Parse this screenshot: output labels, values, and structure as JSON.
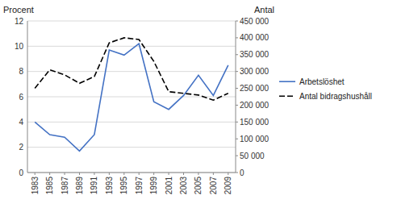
{
  "chart_data": {
    "type": "line",
    "y_label": "Procent",
    "y2_label": "Antal",
    "x": [
      1983,
      1985,
      1987,
      1989,
      1991,
      1993,
      1995,
      1997,
      1999,
      2001,
      2003,
      2005,
      2007,
      2009
    ],
    "series": [
      {
        "name": "Arbetslöshet",
        "color": "#4472C4",
        "line_style": "solid",
        "values": [
          4.0,
          3.0,
          2.8,
          1.7,
          3.0,
          9.7,
          9.3,
          10.2,
          5.6,
          5.0,
          6.1,
          7.7,
          6.1,
          8.5
        ]
      },
      {
        "name": "Antal bidragshushåll",
        "color": "#000000",
        "line_style": "dashed",
        "axis": "y2",
        "values": [
          250000,
          305000,
          290000,
          265000,
          285000,
          385000,
          400000,
          395000,
          330000,
          240000,
          235000,
          230000,
          215000,
          235000
        ]
      }
    ],
    "xlim": [
      1982,
      2010
    ],
    "xticks": [
      1983,
      1985,
      1987,
      1989,
      1991,
      1993,
      1995,
      1997,
      1999,
      2001,
      2003,
      2005,
      2007,
      2009
    ],
    "ylim": [
      0,
      12
    ],
    "yticks": [
      0,
      2,
      4,
      6,
      8,
      10,
      12
    ],
    "y2lim": [
      0,
      450000
    ],
    "y2ticks": [
      0,
      {
        "value": 50000,
        "label": "50 000"
      },
      {
        "value": 100000,
        "label": "100 000"
      },
      {
        "value": 150000,
        "label": "150 000"
      },
      {
        "value": 200000,
        "label": "200 000"
      },
      {
        "value": 250000,
        "label": "250 000"
      },
      {
        "value": 300000,
        "label": "300 000"
      },
      {
        "value": 350000,
        "label": "350 000"
      },
      {
        "value": 400000,
        "label": "400 000"
      },
      {
        "value": 450000,
        "label": "450 000"
      }
    ],
    "grid": true,
    "legend": "right"
  }
}
